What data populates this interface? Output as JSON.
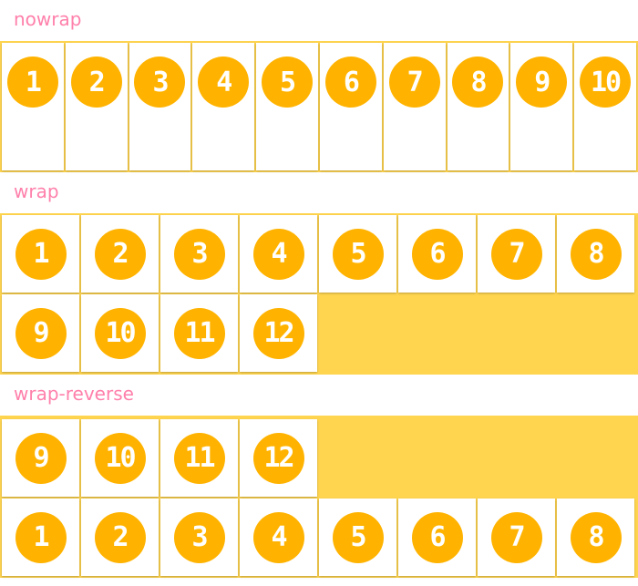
{
  "sections": [
    {
      "label": "nowrap",
      "items": [
        "1",
        "2",
        "3",
        "4",
        "5",
        "6",
        "7",
        "8",
        "9",
        "10"
      ]
    },
    {
      "label": "wrap",
      "items": [
        "1",
        "2",
        "3",
        "4",
        "5",
        "6",
        "7",
        "8",
        "9",
        "10",
        "11",
        "12"
      ]
    },
    {
      "label": "wrap-reverse",
      "items": [
        "1",
        "2",
        "3",
        "4",
        "5",
        "6",
        "7",
        "8",
        "9",
        "10",
        "11",
        "12"
      ]
    }
  ],
  "colors": {
    "label": "#ff80ab",
    "container": "#ffd54f",
    "circle": "#ffb300",
    "item": "#ffffff"
  }
}
